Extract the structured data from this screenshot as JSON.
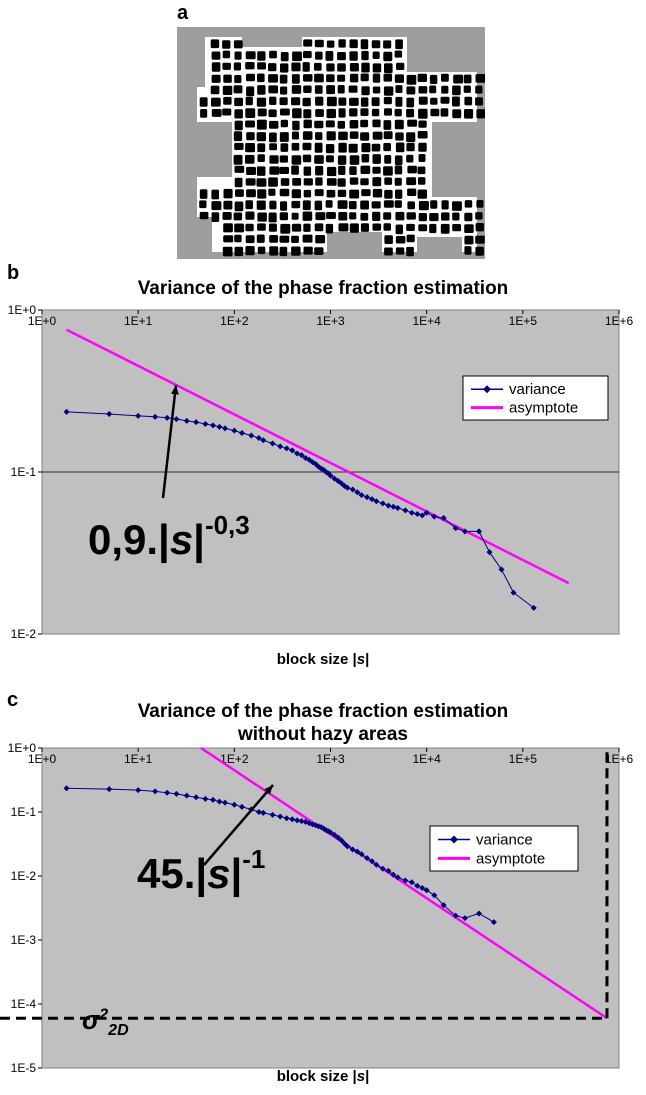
{
  "panels": {
    "a": {
      "letter": "a"
    },
    "b": {
      "letter": "b"
    },
    "c": {
      "letter": "c"
    }
  },
  "annotation_b": {
    "coef": "0,9.|",
    "var": "s",
    "bar": "|",
    "exp": "-0,3"
  },
  "annotation_c": {
    "coef": "45.|",
    "var": "s",
    "bar": "|",
    "exp": "-1"
  },
  "sigma_label": {
    "symbol": "σ",
    "sup": "2",
    "sub": "2D"
  },
  "colors": {
    "plot_bg": "#c0c0c0",
    "variance": "#000080",
    "asymptote": "#ff00ff",
    "micro_bg": "#9e9e9e"
  },
  "chart_data": [
    {
      "type": "line",
      "title": "Variance of the phase fraction estimation",
      "xlabel_prefix": "block size |",
      "xlabel_var": "s",
      "xlabel_suffix": "|",
      "ylabel": "",
      "x_scale": "log",
      "y_scale": "log",
      "xlim": [
        1,
        1000000
      ],
      "ylim": [
        0.01,
        1
      ],
      "x_tick_labels": [
        "1E+0",
        "1E+1",
        "1E+2",
        "1E+3",
        "1E+4",
        "1E+5",
        "1E+6"
      ],
      "y_tick_labels": [
        "1E+0",
        "1E-1",
        "1E-2"
      ],
      "grid": "horizontal major",
      "legend_position": "top-right",
      "series": [
        {
          "name": "variance",
          "marker": "diamond",
          "x": [
            1.8,
            5,
            10,
            15,
            20,
            25,
            32,
            40,
            50,
            60,
            70,
            80,
            100,
            120,
            150,
            180,
            200,
            250,
            300,
            350,
            400,
            450,
            500,
            550,
            600,
            650,
            700,
            750,
            800,
            850,
            900,
            950,
            1000,
            1100,
            1200,
            1300,
            1400,
            1500,
            1700,
            1900,
            2100,
            2400,
            2700,
            3000,
            3500,
            4000,
            4500,
            5000,
            6000,
            7000,
            8000,
            9000,
            10000,
            12000,
            15000,
            20000,
            25000,
            35000,
            45000,
            60000,
            80000,
            130000
          ],
          "y": [
            0.235,
            0.228,
            0.222,
            0.219,
            0.216,
            0.212,
            0.207,
            0.203,
            0.198,
            0.194,
            0.19,
            0.186,
            0.18,
            0.174,
            0.168,
            0.162,
            0.157,
            0.15,
            0.144,
            0.14,
            0.136,
            0.13,
            0.127,
            0.122,
            0.119,
            0.115,
            0.112,
            0.108,
            0.105,
            0.103,
            0.1,
            0.098,
            0.095,
            0.091,
            0.088,
            0.085,
            0.082,
            0.08,
            0.078,
            0.075,
            0.072,
            0.07,
            0.068,
            0.066,
            0.064,
            0.062,
            0.061,
            0.06,
            0.058,
            0.056,
            0.055,
            0.054,
            0.056,
            0.053,
            0.052,
            0.045,
            0.043,
            0.043,
            0.032,
            0.025,
            0.018,
            0.0145
          ]
        },
        {
          "name": "asymptote",
          "formula": "0.9*x^-0.3",
          "x": [
            1.8,
            300000
          ],
          "y": [
            0.756,
            0.0206
          ]
        }
      ]
    },
    {
      "type": "line",
      "title": "Variance of the phase fraction estimation",
      "title_line2": "without hazy areas",
      "xlabel_prefix": "block size |",
      "xlabel_var": "s",
      "xlabel_suffix": "|",
      "ylabel": "",
      "x_scale": "log",
      "y_scale": "log",
      "xlim": [
        1,
        1000000
      ],
      "ylim": [
        1e-05,
        1
      ],
      "x_tick_labels": [
        "1E+0",
        "1E+1",
        "1E+2",
        "1E+3",
        "1E+4",
        "1E+5",
        "1E+6"
      ],
      "y_tick_labels": [
        "1E+0",
        "1E-1",
        "1E-2",
        "1E-3",
        "1E-4",
        "1E-5"
      ],
      "grid": "none",
      "legend_position": "right",
      "series": [
        {
          "name": "variance",
          "marker": "diamond",
          "x": [
            1.8,
            5,
            10,
            15,
            20,
            25,
            32,
            40,
            50,
            60,
            70,
            80,
            100,
            120,
            150,
            180,
            200,
            250,
            300,
            350,
            400,
            450,
            500,
            550,
            600,
            650,
            700,
            750,
            800,
            850,
            900,
            950,
            1000,
            1100,
            1200,
            1300,
            1400,
            1500,
            1700,
            1900,
            2100,
            2400,
            2700,
            3000,
            3500,
            4000,
            4500,
            5000,
            6000,
            7000,
            8000,
            9000,
            10000,
            12000,
            15000,
            20000,
            25000,
            35000,
            50000
          ],
          "y": [
            0.235,
            0.228,
            0.22,
            0.21,
            0.2,
            0.192,
            0.18,
            0.17,
            0.16,
            0.155,
            0.145,
            0.14,
            0.13,
            0.12,
            0.11,
            0.1,
            0.097,
            0.09,
            0.085,
            0.08,
            0.077,
            0.074,
            0.072,
            0.07,
            0.067,
            0.064,
            0.062,
            0.06,
            0.058,
            0.055,
            0.052,
            0.05,
            0.048,
            0.044,
            0.04,
            0.036,
            0.032,
            0.029,
            0.026,
            0.024,
            0.022,
            0.019,
            0.017,
            0.015,
            0.013,
            0.012,
            0.0105,
            0.0095,
            0.0085,
            0.008,
            0.007,
            0.0065,
            0.006,
            0.005,
            0.0035,
            0.0024,
            0.0022,
            0.0026,
            0.0019
          ]
        },
        {
          "name": "asymptote",
          "formula": "45*x^-1",
          "x": [
            45,
            750000
          ],
          "y": [
            1,
            6e-05
          ]
        }
      ],
      "reference_lines": {
        "y": 6e-05,
        "x": 750000,
        "style": "dashed"
      }
    }
  ]
}
